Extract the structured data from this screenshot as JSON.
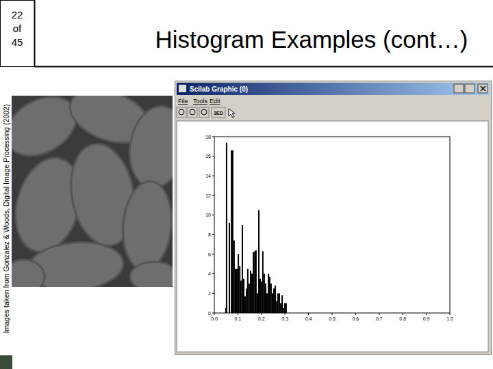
{
  "slide": {
    "page": [
      "22",
      "of",
      "45"
    ],
    "title": "Histogram Examples (cont…)",
    "credit": "Images taken from Gonzalez & Woods, Digital Image Processing (2002)"
  },
  "window": {
    "title": "Scilab Graphic (0)",
    "menu": [
      "File",
      "Tools",
      "Edit"
    ],
    "toolbar_label": "3ED"
  },
  "chart_data": {
    "type": "bar",
    "color": "#000000",
    "x": [
      0.049,
      0.052,
      0.064,
      0.073,
      0.078,
      0.084,
      0.09,
      0.096,
      0.102,
      0.108,
      0.113,
      0.119,
      0.125,
      0.131,
      0.137,
      0.142,
      0.148,
      0.154,
      0.16,
      0.166,
      0.172,
      0.177,
      0.183,
      0.189,
      0.195,
      0.201,
      0.206,
      0.212,
      0.218,
      0.224,
      0.23,
      0.235,
      0.241,
      0.247,
      0.253,
      0.259,
      0.265,
      0.27,
      0.276,
      0.282,
      0.288,
      0.294,
      0.299,
      0.305
    ],
    "values": [
      0.5,
      17.4,
      9.2,
      16.6,
      16.6,
      7.4,
      4.5,
      4.5,
      6.0,
      4.8,
      3.3,
      9.0,
      3.5,
      1.7,
      2.5,
      4.5,
      3.0,
      4.3,
      4.0,
      6.2,
      6.3,
      6.4,
      2.0,
      10.5,
      3.5,
      3.2,
      6.3,
      4.0,
      3.0,
      2.0,
      4.0,
      3.7,
      3.0,
      2.0,
      2.5,
      2.8,
      1.2,
      2.0,
      2.0,
      1.0,
      1.8,
      0.5,
      1.0,
      1.0
    ],
    "xlim": [
      0,
      1
    ],
    "ylim": [
      0,
      18
    ],
    "xticks": [
      {
        "value": 0,
        "label": "0.0"
      },
      0.1,
      0.2,
      0.3,
      0.4,
      0.5,
      0.6,
      0.7,
      0.8,
      0.9,
      {
        "value": 1,
        "label": "1.0"
      }
    ],
    "yticks": [
      0,
      2,
      4,
      6,
      8,
      10,
      12,
      14,
      16,
      18
    ]
  }
}
